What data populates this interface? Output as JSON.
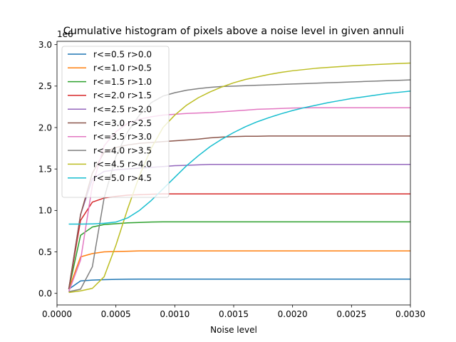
{
  "chart_data": {
    "type": "line",
    "title": "Cumulative histogram of pixels above a noise level in given annuli",
    "xlabel": "Noise level",
    "ylabel": "",
    "y_offset_text": "1e6",
    "xlim": [
      0.0,
      0.003
    ],
    "ylim": [
      -0.14,
      3.04
    ],
    "x_ticks": [
      0.0,
      0.0005,
      0.001,
      0.0015,
      0.002,
      0.0025,
      0.003
    ],
    "x_tick_labels": [
      "0.0000",
      "0.0005",
      "0.0010",
      "0.0015",
      "0.0020",
      "0.0025",
      "0.0030"
    ],
    "y_ticks": [
      0.0,
      0.5,
      1.0,
      1.5,
      2.0,
      2.5,
      3.0
    ],
    "y_tick_labels": [
      "0.0",
      "0.5",
      "1.0",
      "1.5",
      "2.0",
      "2.5",
      "3.0"
    ],
    "grid": false,
    "legend_position": "top-left",
    "x": [
      0.0001,
      0.0002,
      0.0003,
      0.0004,
      0.0005,
      0.0006,
      0.0007,
      0.0008,
      0.0009,
      0.001,
      0.0011,
      0.0012,
      0.0013,
      0.0014,
      0.0015,
      0.0016,
      0.0017,
      0.0018,
      0.0019,
      0.002,
      0.0021,
      0.0022,
      0.0023,
      0.0024,
      0.0025,
      0.0026,
      0.0027,
      0.0028,
      0.0029,
      0.003
    ],
    "series": [
      {
        "name": "r<=0.5  r>0.0",
        "color": "#1f77b4",
        "values": [
          0.05,
          0.15,
          0.16,
          0.165,
          0.168,
          0.17,
          0.172,
          0.172,
          0.172,
          0.172,
          0.172,
          0.172,
          0.172,
          0.172,
          0.172,
          0.172,
          0.172,
          0.172,
          0.172,
          0.172,
          0.172,
          0.172,
          0.172,
          0.172,
          0.172,
          0.172,
          0.172,
          0.172,
          0.172,
          0.172
        ]
      },
      {
        "name": "r<=1.0  r>0.5",
        "color": "#ff7f0e",
        "values": [
          0.05,
          0.44,
          0.48,
          0.5,
          0.505,
          0.508,
          0.512,
          0.512,
          0.512,
          0.512,
          0.512,
          0.512,
          0.512,
          0.512,
          0.512,
          0.512,
          0.512,
          0.512,
          0.512,
          0.512,
          0.512,
          0.512,
          0.512,
          0.512,
          0.512,
          0.512,
          0.512,
          0.512,
          0.512,
          0.512
        ]
      },
      {
        "name": "r<=1.5  r>1.0",
        "color": "#2ca02c",
        "values": [
          0.05,
          0.7,
          0.8,
          0.83,
          0.84,
          0.85,
          0.855,
          0.86,
          0.862,
          0.862,
          0.862,
          0.862,
          0.862,
          0.862,
          0.862,
          0.862,
          0.862,
          0.862,
          0.862,
          0.862,
          0.862,
          0.862,
          0.862,
          0.862,
          0.862,
          0.862,
          0.862,
          0.862,
          0.862,
          0.862
        ]
      },
      {
        "name": "r<=2.0  r>1.5",
        "color": "#d62728",
        "values": [
          0.05,
          0.88,
          1.1,
          1.15,
          1.17,
          1.185,
          1.19,
          1.195,
          1.2,
          1.2,
          1.2,
          1.2,
          1.2,
          1.2,
          1.2,
          1.2,
          1.2,
          1.2,
          1.2,
          1.2,
          1.2,
          1.2,
          1.2,
          1.2,
          1.2,
          1.2,
          1.2,
          1.2,
          1.2,
          1.2
        ]
      },
      {
        "name": "r<=2.5  r>2.0",
        "color": "#9467bd",
        "values": [
          0.05,
          0.95,
          1.38,
          1.47,
          1.49,
          1.5,
          1.51,
          1.52,
          1.53,
          1.54,
          1.545,
          1.55,
          1.555,
          1.555,
          1.555,
          1.555,
          1.555,
          1.555,
          1.555,
          1.555,
          1.555,
          1.555,
          1.555,
          1.555,
          1.555,
          1.555,
          1.555,
          1.555,
          1.555,
          1.555
        ]
      },
      {
        "name": "r<=3.0  r>2.5",
        "color": "#8c564b",
        "values": [
          0.05,
          0.95,
          1.45,
          1.7,
          1.76,
          1.79,
          1.81,
          1.82,
          1.83,
          1.84,
          1.85,
          1.86,
          1.875,
          1.885,
          1.89,
          1.895,
          1.895,
          1.898,
          1.898,
          1.898,
          1.898,
          1.898,
          1.898,
          1.898,
          1.898,
          1.898,
          1.898,
          1.898,
          1.898,
          1.898
        ]
      },
      {
        "name": "r<=3.5  r>3.0",
        "color": "#e377c2",
        "values": [
          0.02,
          0.4,
          1.3,
          1.78,
          1.95,
          2.05,
          2.1,
          2.13,
          2.15,
          2.16,
          2.17,
          2.175,
          2.18,
          2.19,
          2.2,
          2.21,
          2.22,
          2.225,
          2.23,
          2.235,
          2.237,
          2.238,
          2.238,
          2.238,
          2.238,
          2.238,
          2.238,
          2.238,
          2.238,
          2.238
        ]
      },
      {
        "name": "r<=4.0  r>3.5",
        "color": "#7f7f7f",
        "values": [
          0.02,
          0.05,
          0.32,
          1.15,
          1.65,
          1.95,
          2.15,
          2.3,
          2.38,
          2.42,
          2.45,
          2.47,
          2.485,
          2.495,
          2.5,
          2.505,
          2.51,
          2.515,
          2.52,
          2.525,
          2.53,
          2.535,
          2.54,
          2.545,
          2.55,
          2.555,
          2.56,
          2.565,
          2.57,
          2.575
        ]
      },
      {
        "name": "r<=4.5  r>4.0",
        "color": "#bcbd22",
        "values": [
          0.01,
          0.03,
          0.06,
          0.2,
          0.58,
          1.02,
          1.42,
          1.75,
          2.0,
          2.15,
          2.27,
          2.36,
          2.43,
          2.49,
          2.54,
          2.58,
          2.61,
          2.64,
          2.665,
          2.685,
          2.7,
          2.715,
          2.725,
          2.735,
          2.745,
          2.752,
          2.76,
          2.766,
          2.772,
          2.778
        ]
      },
      {
        "name": "r<=5.0  r>4.5",
        "color": "#17becf",
        "values": [
          0.835,
          0.835,
          0.838,
          0.845,
          0.86,
          0.91,
          1.0,
          1.12,
          1.26,
          1.4,
          1.54,
          1.66,
          1.77,
          1.86,
          1.94,
          2.01,
          2.07,
          2.12,
          2.165,
          2.205,
          2.24,
          2.27,
          2.3,
          2.325,
          2.35,
          2.37,
          2.39,
          2.41,
          2.425,
          2.44
        ]
      }
    ]
  }
}
